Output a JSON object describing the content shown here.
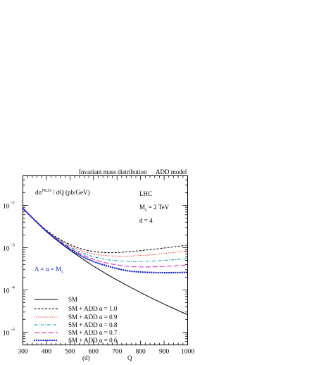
{
  "chart_data": {
    "type": "line",
    "title": "Invariant mass distribution",
    "model_label": "ADD model",
    "ylabel_main": "dσ",
    "ylabel_sup": "NLO",
    "ylabel_rest": " / dQ (pb/GeV)",
    "xlabel": "Q",
    "panel_label": "(d)",
    "info_lines": [
      "LHC",
      "M",
      "d = 4"
    ],
    "info_ms_main": "M",
    "info_ms_sub": "s",
    "info_ms_rest": " = 2 TeV",
    "lambda_label_main": "Λ = α = M",
    "lambda_label_sub": "s",
    "y_scale": "log",
    "xlim": [
      300,
      1000
    ],
    "ylim": [
      5e-06,
      0.05
    ],
    "x_ticks": [
      300,
      400,
      500,
      600,
      700,
      800,
      900,
      1000
    ],
    "x_tick_labels": [
      "300",
      "400",
      "500",
      "600",
      "700",
      "800",
      "900",
      "1000"
    ],
    "y_ticks": [
      {
        "mantissa": "10",
        "exp": "-2",
        "value": 0.01
      },
      {
        "mantissa": "10",
        "exp": "-3",
        "value": 0.001
      },
      {
        "mantissa": "10",
        "exp": "-4",
        "value": 0.0001
      },
      {
        "mantissa": "10",
        "exp": "-5",
        "value": 1e-05
      }
    ],
    "legend_placement": "bottom-left",
    "x": [
      300,
      350,
      400,
      450,
      500,
      550,
      600,
      650,
      700,
      750,
      800,
      850,
      900,
      950,
      1000
    ],
    "series": [
      {
        "name": "SM",
        "style": "solid",
        "color": "#000000",
        "values": [
          0.0085,
          0.0044,
          0.0024,
          0.00141,
          0.00087,
          0.00056,
          0.000365,
          0.000248,
          0.000172,
          0.000121,
          8.65e-05,
          6.28e-05,
          4.62e-05,
          3.44e-05,
          2.59e-05
        ]
      },
      {
        "name": "SM + ADD  α = 1.0",
        "style": "dashed",
        "color": "#000000",
        "values": [
          0.0085,
          0.0045,
          0.0026,
          0.00167,
          0.00119,
          0.00093,
          0.00081,
          0.000765,
          0.000765,
          0.0008,
          0.00085,
          0.00091,
          0.00098,
          0.00106,
          0.00115
        ]
      },
      {
        "name": "SM + ADD  α = 0.9",
        "style": "dotted",
        "color": "#e02020",
        "values": [
          0.0085,
          0.0045,
          0.00255,
          0.00161,
          0.00111,
          0.00084,
          0.00071,
          0.00065,
          0.00063,
          0.00063,
          0.00065,
          0.00068,
          0.00073,
          0.00078,
          0.00085
        ]
      },
      {
        "name": "SM + ADD  α = 0.8",
        "style": "dashdot",
        "color": "#0090b0",
        "values": [
          0.0085,
          0.0045,
          0.0025,
          0.00156,
          0.00104,
          0.00076,
          0.00061,
          0.00053,
          0.00049,
          0.00047,
          0.00047,
          0.00048,
          0.0005,
          0.00052,
          0.00055
        ]
      },
      {
        "name": "SM + ADD  α = 0.7",
        "style": "longdash",
        "color": "#e040c0",
        "values": [
          0.0085,
          0.0045,
          0.00247,
          0.0015,
          0.00097,
          0.00069,
          0.00053,
          0.00044,
          0.00039,
          0.00036,
          0.00035,
          0.00035,
          0.00036,
          0.00037,
          0.00039
        ]
      },
      {
        "name": "SM + ADD  α = 0.6",
        "style": "bigdots",
        "color": "#1020c0",
        "values": [
          0.0085,
          0.0045,
          0.00244,
          0.00146,
          0.00092,
          0.00063,
          0.00047,
          0.00038,
          0.00032,
          0.00028,
          0.000265,
          0.000258,
          0.000255,
          0.000257,
          0.00026
        ]
      }
    ]
  }
}
